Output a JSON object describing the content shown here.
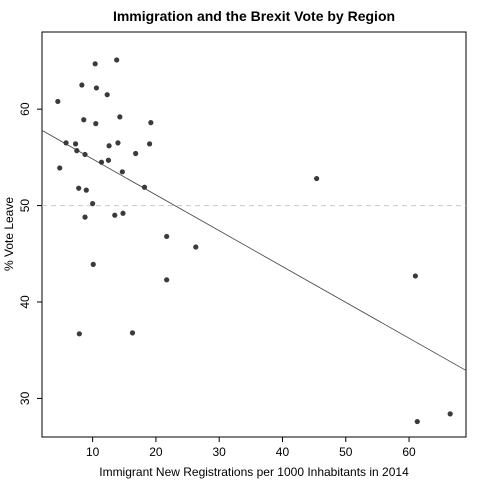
{
  "chart_data": {
    "type": "scatter",
    "title": "Immigration and the Brexit Vote by Region",
    "xlabel": "Immigrant New Registrations per 1000 Inhabitants in 2014",
    "ylabel": "% Vote Leave",
    "xlim": [
      2,
      69
    ],
    "ylim": [
      26,
      68
    ],
    "xticks": [
      10,
      20,
      30,
      40,
      50,
      60
    ],
    "yticks": [
      30,
      40,
      50,
      60
    ],
    "reference_line": {
      "y": 50,
      "style": "dashed",
      "color": "#c8c8c8"
    },
    "trend_line": {
      "x": [
        2,
        69
      ],
      "y": [
        57.8,
        32.9
      ],
      "color": "#404040"
    },
    "points_color": "#3a3a3a",
    "points": [
      {
        "x": 4.5,
        "y": 60.8
      },
      {
        "x": 4.8,
        "y": 53.9
      },
      {
        "x": 5.8,
        "y": 56.5
      },
      {
        "x": 7.3,
        "y": 56.4
      },
      {
        "x": 7.5,
        "y": 55.7
      },
      {
        "x": 7.8,
        "y": 51.8
      },
      {
        "x": 7.9,
        "y": 36.7
      },
      {
        "x": 8.3,
        "y": 62.5
      },
      {
        "x": 8.6,
        "y": 58.9
      },
      {
        "x": 8.8,
        "y": 55.3
      },
      {
        "x": 8.8,
        "y": 48.8
      },
      {
        "x": 9.0,
        "y": 51.6
      },
      {
        "x": 10.0,
        "y": 50.2
      },
      {
        "x": 10.1,
        "y": 43.9
      },
      {
        "x": 10.4,
        "y": 64.7
      },
      {
        "x": 10.5,
        "y": 58.5
      },
      {
        "x": 10.6,
        "y": 62.2
      },
      {
        "x": 11.4,
        "y": 54.5
      },
      {
        "x": 12.3,
        "y": 61.5
      },
      {
        "x": 12.5,
        "y": 54.7
      },
      {
        "x": 12.6,
        "y": 56.2
      },
      {
        "x": 13.5,
        "y": 49.0
      },
      {
        "x": 13.8,
        "y": 65.1
      },
      {
        "x": 14.0,
        "y": 56.5
      },
      {
        "x": 14.3,
        "y": 59.2
      },
      {
        "x": 14.7,
        "y": 53.5
      },
      {
        "x": 14.8,
        "y": 49.2
      },
      {
        "x": 16.3,
        "y": 36.8
      },
      {
        "x": 16.8,
        "y": 55.4
      },
      {
        "x": 18.2,
        "y": 51.9
      },
      {
        "x": 19.0,
        "y": 56.4
      },
      {
        "x": 19.2,
        "y": 58.6
      },
      {
        "x": 21.7,
        "y": 46.8
      },
      {
        "x": 21.7,
        "y": 42.3
      },
      {
        "x": 26.3,
        "y": 45.7
      },
      {
        "x": 45.4,
        "y": 52.8
      },
      {
        "x": 61.0,
        "y": 42.7
      },
      {
        "x": 61.3,
        "y": 27.6
      },
      {
        "x": 66.5,
        "y": 28.4
      }
    ]
  }
}
